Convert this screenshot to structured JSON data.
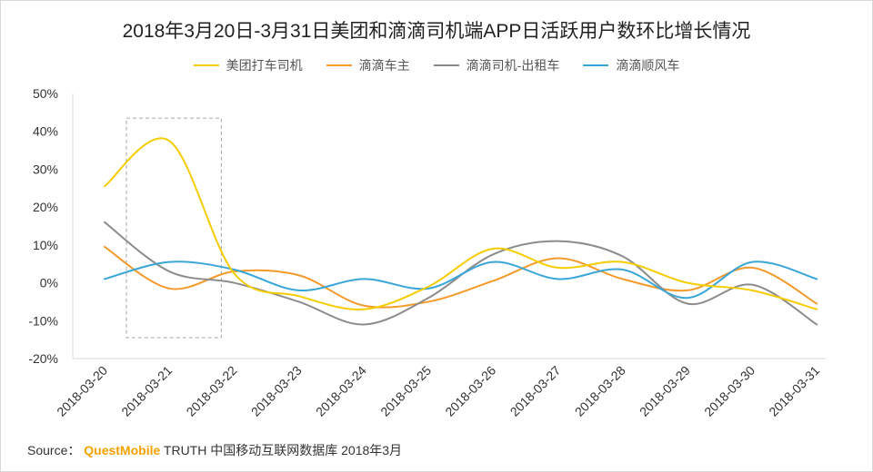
{
  "chart_data": {
    "type": "line",
    "title": "2018年3月20日-3月31日美团和滴滴司机端APP日活跃用户数环比增长情况",
    "categories": [
      "2018-03-20",
      "2018-03-21",
      "2018-03-22",
      "2018-03-23",
      "2018-03-24",
      "2018-03-25",
      "2018-03-26",
      "2018-03-27",
      "2018-03-28",
      "2018-03-29",
      "2018-03-30",
      "2018-03-31"
    ],
    "yticks": [
      "50%",
      "40%",
      "30%",
      "20%",
      "10%",
      "0%",
      "-10%",
      "-20%"
    ],
    "ylim": [
      -20,
      50
    ],
    "series": [
      {
        "name": "美团打车司机",
        "color": "#f5cc00",
        "values": [
          25.5,
          37.5,
          2.5,
          -3.5,
          -7,
          -1,
          9,
          4,
          5.5,
          0,
          -2,
          -7
        ]
      },
      {
        "name": "滴滴车主",
        "color": "#f39a2b",
        "values": [
          9.5,
          -1.5,
          3,
          2,
          -6,
          -5,
          0.5,
          6.5,
          1,
          -2,
          4,
          -5.5
        ]
      },
      {
        "name": "滴滴司机-出租车",
        "color": "#8c8c8c",
        "values": [
          16,
          3,
          0,
          -5,
          -11,
          -4,
          7.5,
          11,
          7,
          -5.5,
          -0.5,
          -11
        ]
      },
      {
        "name": "滴滴顺风车",
        "color": "#3aa6d8",
        "values": [
          1,
          5.5,
          3.5,
          -2,
          1,
          -1.5,
          5.5,
          1,
          3.5,
          -4,
          5.5,
          1
        ]
      }
    ],
    "highlight": {
      "from_category": "2018-03-20",
      "to_category": "2018-03-22",
      "y_range": [
        -14.5,
        43.5
      ]
    }
  },
  "source": {
    "prefix": "Source：",
    "brand": "QuestMobile",
    "rest": "TRUTH 中国移动互联网数据库 2018年3月"
  }
}
